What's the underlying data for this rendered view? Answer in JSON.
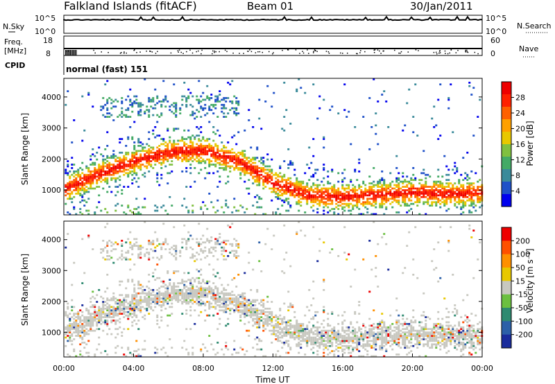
{
  "header": {
    "station": "Falkland Islands (fitACF)",
    "beam": "Beam 01",
    "date": "30/Jan/2011"
  },
  "panels": {
    "nsky": {
      "left_label": "N.Sky",
      "right_label": "N.Search",
      "ticks": [
        "10^5",
        "10^0"
      ]
    },
    "freq": {
      "left_label_1": "Freq.",
      "left_label_2": "[MHz]",
      "right_label": "Nave",
      "left_ticks": [
        "18",
        "8"
      ],
      "right_ticks": [
        "60",
        "0"
      ]
    },
    "cpid": {
      "label": "CPID",
      "value": "normal (fast) 151"
    }
  },
  "chart_data": [
    {
      "type": "heatmap",
      "name": "power",
      "ylabel": "Slant Range [km]",
      "xlabel": "",
      "ylim": [
        200,
        4600
      ],
      "yticks": [
        "4000",
        "3000",
        "2000",
        "1000"
      ],
      "xlim_hours": [
        0,
        24
      ],
      "colorbar": {
        "label": "Power [dB]",
        "ticks": [
          "28",
          "24",
          "20",
          "16",
          "12",
          "8",
          "4"
        ],
        "colors": [
          "#0000ee",
          "#1e50c8",
          "#3a8a9a",
          "#44aa66",
          "#80c040",
          "#e8c800",
          "#ffa000",
          "#ff6000",
          "#ff2000",
          "#ee0000"
        ]
      },
      "main_band_km": [
        [
          0,
          1000
        ],
        [
          2,
          1500
        ],
        [
          4,
          1900
        ],
        [
          6,
          2200
        ],
        [
          8,
          2250
        ],
        [
          10,
          1900
        ],
        [
          12,
          1200
        ],
        [
          14,
          800
        ],
        [
          16,
          750
        ],
        [
          18,
          820
        ],
        [
          20,
          900
        ],
        [
          22,
          850
        ],
        [
          24,
          900
        ]
      ]
    },
    {
      "type": "heatmap",
      "name": "velocity",
      "ylabel": "Slant Range [km]",
      "xlabel": "Time UT",
      "ylim": [
        200,
        4600
      ],
      "yticks": [
        "4000",
        "3000",
        "2000",
        "1000"
      ],
      "xticks": [
        "00:00",
        "04:00",
        "08:00",
        "12:00",
        "16:00",
        "20:00",
        "00:00"
      ],
      "colorbar": {
        "label": "Velocity [m s⁻¹]",
        "ticks": [
          "200",
          "100",
          "50",
          "15",
          "-15",
          "-50",
          "-100",
          "-200"
        ],
        "colors": [
          "#1a2c9c",
          "#2c60a8",
          "#2e8a70",
          "#6cc040",
          "#c8c8c0",
          "#e8c800",
          "#ff9000",
          "#ff5000",
          "#ee0000"
        ]
      }
    }
  ]
}
